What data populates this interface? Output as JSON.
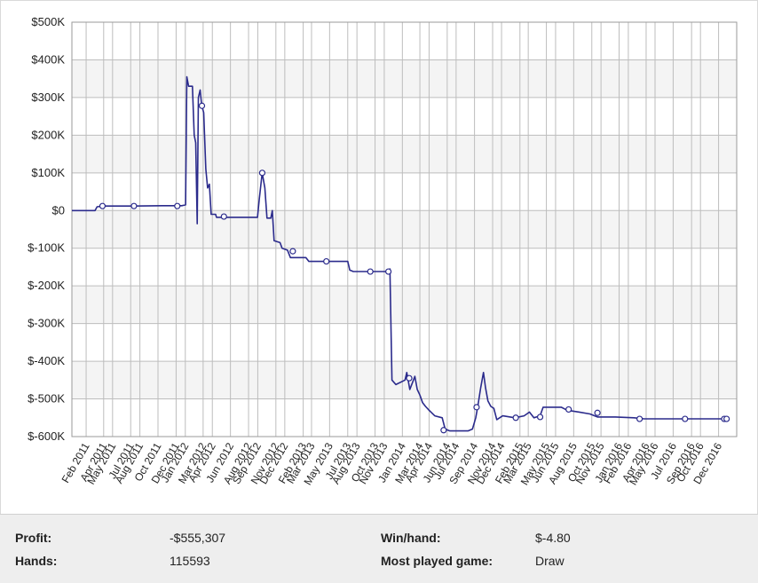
{
  "chart_data": {
    "type": "line",
    "title": "",
    "xlabel": "",
    "ylabel": "",
    "ylim": [
      -600000,
      500000
    ],
    "y_ticks": [
      {
        "value": 500000,
        "label": "$500K"
      },
      {
        "value": 400000,
        "label": "$400K"
      },
      {
        "value": 300000,
        "label": "$300K"
      },
      {
        "value": 200000,
        "label": "$200K"
      },
      {
        "value": 100000,
        "label": "$100K"
      },
      {
        "value": 0,
        "label": "$0"
      },
      {
        "value": -100000,
        "label": "$-100K"
      },
      {
        "value": -200000,
        "label": "$-200K"
      },
      {
        "value": -300000,
        "label": "$-300K"
      },
      {
        "value": -400000,
        "label": "$-400K"
      },
      {
        "value": -500000,
        "label": "$-500K"
      },
      {
        "value": -600000,
        "label": "$-600K"
      }
    ],
    "xlim": [
      "2010-12-15",
      "2017-01-31"
    ],
    "x_ticks": [
      {
        "date": "2011-02-01",
        "label": "Feb 2011"
      },
      {
        "date": "2011-04-01",
        "label": "Apr 2011"
      },
      {
        "date": "2011-05-01",
        "label": "May 2011"
      },
      {
        "date": "2011-07-01",
        "label": "Jul 2011"
      },
      {
        "date": "2011-08-01",
        "label": "Aug 2011"
      },
      {
        "date": "2011-10-01",
        "label": "Oct 2011"
      },
      {
        "date": "2011-12-01",
        "label": "Dec 2011"
      },
      {
        "date": "2012-01-01",
        "label": "Jan 2012"
      },
      {
        "date": "2012-03-01",
        "label": "Mar 2012"
      },
      {
        "date": "2012-04-01",
        "label": "Apr 2012"
      },
      {
        "date": "2012-06-01",
        "label": "Jun 2012"
      },
      {
        "date": "2012-08-01",
        "label": "Aug 2012"
      },
      {
        "date": "2012-09-01",
        "label": "Sep 2012"
      },
      {
        "date": "2012-11-01",
        "label": "Nov 2012"
      },
      {
        "date": "2012-12-01",
        "label": "Dec 2012"
      },
      {
        "date": "2013-02-01",
        "label": "Feb 2013"
      },
      {
        "date": "2013-03-01",
        "label": "Mar 2013"
      },
      {
        "date": "2013-05-01",
        "label": "May 2013"
      },
      {
        "date": "2013-07-01",
        "label": "Jul 2013"
      },
      {
        "date": "2013-08-01",
        "label": "Aug 2013"
      },
      {
        "date": "2013-10-01",
        "label": "Oct 2013"
      },
      {
        "date": "2013-11-01",
        "label": "Nov 2013"
      },
      {
        "date": "2014-01-01",
        "label": "Jan 2014"
      },
      {
        "date": "2014-03-01",
        "label": "Mar 2014"
      },
      {
        "date": "2014-04-01",
        "label": "Apr 2014"
      },
      {
        "date": "2014-06-01",
        "label": "Jun 2014"
      },
      {
        "date": "2014-07-01",
        "label": "Jul 2014"
      },
      {
        "date": "2014-09-01",
        "label": "Sep 2014"
      },
      {
        "date": "2014-11-01",
        "label": "Nov 2014"
      },
      {
        "date": "2014-12-01",
        "label": "Dec 2014"
      },
      {
        "date": "2015-02-01",
        "label": "Feb 2015"
      },
      {
        "date": "2015-03-01",
        "label": "Mar 2015"
      },
      {
        "date": "2015-05-01",
        "label": "May 2015"
      },
      {
        "date": "2015-06-01",
        "label": "Jun 2015"
      },
      {
        "date": "2015-08-01",
        "label": "Aug 2015"
      },
      {
        "date": "2015-10-01",
        "label": "Oct 2015"
      },
      {
        "date": "2015-11-01",
        "label": "Nov 2015"
      },
      {
        "date": "2016-01-01",
        "label": "Jan 2016"
      },
      {
        "date": "2016-02-01",
        "label": "Feb 2016"
      },
      {
        "date": "2016-04-01",
        "label": "Apr 2016"
      },
      {
        "date": "2016-05-01",
        "label": "May 2016"
      },
      {
        "date": "2016-07-01",
        "label": "Jul 2016"
      },
      {
        "date": "2016-09-01",
        "label": "Sep 2016"
      },
      {
        "date": "2016-10-01",
        "label": "Oct 2016"
      },
      {
        "date": "2016-12-01",
        "label": "Dec 2016"
      }
    ],
    "grid": true,
    "series": [
      {
        "color": "#2b2b8c",
        "points": [
          [
            "2010-12-15",
            0
          ],
          [
            "2011-03-03",
            0
          ],
          [
            "2011-03-10",
            10000
          ],
          [
            "2011-04-02",
            12000
          ],
          [
            "2011-07-10",
            12000
          ],
          [
            "2011-10-15",
            13000
          ],
          [
            "2011-12-20",
            13000
          ],
          [
            "2012-01-02",
            15000
          ],
          [
            "2012-01-06",
            355000
          ],
          [
            "2012-01-12",
            330000
          ],
          [
            "2012-01-25",
            330000
          ],
          [
            "2012-01-31",
            200000
          ],
          [
            "2012-02-05",
            180000
          ],
          [
            "2012-02-10",
            -35000
          ],
          [
            "2012-02-14",
            300000
          ],
          [
            "2012-02-20",
            320000
          ],
          [
            "2012-02-25",
            280000
          ],
          [
            "2012-03-03",
            260000
          ],
          [
            "2012-03-10",
            110000
          ],
          [
            "2012-03-16",
            60000
          ],
          [
            "2012-03-22",
            70000
          ],
          [
            "2012-03-28",
            -10000
          ],
          [
            "2012-04-12",
            -10000
          ],
          [
            "2012-04-15",
            -18000
          ],
          [
            "2012-06-15",
            -18000
          ],
          [
            "2012-08-31",
            -18000
          ],
          [
            "2012-09-06",
            30000
          ],
          [
            "2012-09-16",
            100000
          ],
          [
            "2012-09-25",
            60000
          ],
          [
            "2012-10-02",
            -20000
          ],
          [
            "2012-10-15",
            -20000
          ],
          [
            "2012-10-20",
            0
          ],
          [
            "2012-10-26",
            -80000
          ],
          [
            "2012-11-15",
            -85000
          ],
          [
            "2012-11-22",
            -100000
          ],
          [
            "2012-12-10",
            -105000
          ],
          [
            "2012-12-20",
            -125000
          ],
          [
            "2013-02-10",
            -125000
          ],
          [
            "2013-02-20",
            -135000
          ],
          [
            "2013-06-01",
            -135000
          ],
          [
            "2013-07-01",
            -135000
          ],
          [
            "2013-07-08",
            -158000
          ],
          [
            "2013-07-20",
            -162000
          ],
          [
            "2013-11-15",
            -162000
          ],
          [
            "2013-11-20",
            -155000
          ],
          [
            "2013-11-27",
            -450000
          ],
          [
            "2013-12-10",
            -462000
          ],
          [
            "2014-01-10",
            -450000
          ],
          [
            "2014-01-16",
            -430000
          ],
          [
            "2014-01-26",
            -475000
          ],
          [
            "2014-02-05",
            -455000
          ],
          [
            "2014-02-12",
            -440000
          ],
          [
            "2014-02-20",
            -475000
          ],
          [
            "2014-03-01",
            -490000
          ],
          [
            "2014-03-10",
            -510000
          ],
          [
            "2014-03-20",
            -520000
          ],
          [
            "2014-04-01",
            -530000
          ],
          [
            "2014-04-20",
            -545000
          ],
          [
            "2014-05-15",
            -550000
          ],
          [
            "2014-05-25",
            -580000
          ],
          [
            "2014-06-10",
            -585000
          ],
          [
            "2014-07-15",
            -585000
          ],
          [
            "2014-08-10",
            -585000
          ],
          [
            "2014-08-25",
            -580000
          ],
          [
            "2014-09-05",
            -550000
          ],
          [
            "2014-09-12",
            -520000
          ],
          [
            "2014-09-22",
            -470000
          ],
          [
            "2014-10-01",
            -430000
          ],
          [
            "2014-10-08",
            -470000
          ],
          [
            "2014-10-16",
            -505000
          ],
          [
            "2014-10-26",
            -520000
          ],
          [
            "2014-11-05",
            -525000
          ],
          [
            "2014-11-15",
            -555000
          ],
          [
            "2014-12-05",
            -545000
          ],
          [
            "2015-01-15",
            -550000
          ],
          [
            "2015-02-15",
            -545000
          ],
          [
            "2015-03-05",
            -535000
          ],
          [
            "2015-03-20",
            -550000
          ],
          [
            "2015-04-10",
            -545000
          ],
          [
            "2015-04-20",
            -522000
          ],
          [
            "2015-05-20",
            -522000
          ],
          [
            "2015-06-20",
            -522000
          ],
          [
            "2015-07-10",
            -530000
          ],
          [
            "2015-08-20",
            -535000
          ],
          [
            "2015-09-25",
            -540000
          ],
          [
            "2015-10-20",
            -548000
          ],
          [
            "2015-12-20",
            -548000
          ],
          [
            "2016-02-20",
            -550000
          ],
          [
            "2016-03-25",
            -553000
          ],
          [
            "2016-06-15",
            -553000
          ],
          [
            "2016-09-15",
            -553000
          ],
          [
            "2016-12-31",
            -553000
          ]
        ],
        "markers": [
          [
            "2011-03-28",
            12000
          ],
          [
            "2011-07-12",
            12000
          ],
          [
            "2011-12-05",
            12000
          ],
          [
            "2012-02-26",
            278000
          ],
          [
            "2012-05-10",
            -16000
          ],
          [
            "2012-09-16",
            100000
          ],
          [
            "2012-12-28",
            -108000
          ],
          [
            "2013-04-20",
            -135000
          ],
          [
            "2013-09-15",
            -162000
          ],
          [
            "2013-11-15",
            -162000
          ],
          [
            "2014-01-24",
            -445000
          ],
          [
            "2014-05-20",
            -583000
          ],
          [
            "2014-09-08",
            -522000
          ],
          [
            "2015-01-18",
            -550000
          ],
          [
            "2015-04-10",
            -548000
          ],
          [
            "2015-07-15",
            -528000
          ],
          [
            "2015-10-20",
            -537000
          ],
          [
            "2016-03-10",
            -553000
          ],
          [
            "2016-08-10",
            -553000
          ],
          [
            "2016-12-20",
            -553000
          ],
          [
            "2016-12-28",
            -553000
          ]
        ]
      }
    ]
  },
  "stats": {
    "profit_label": "Profit:",
    "profit_value": "-$555,307",
    "hands_label": "Hands:",
    "hands_value": "115593",
    "winhand_label": "Win/hand:",
    "winhand_value": "$-4.80",
    "game_label": "Most played game:",
    "game_value": "Draw"
  },
  "colors": {
    "line": "#2b2b8c",
    "grid": "#bdbdbd",
    "band": "#f4f4f4",
    "panel": "#eeeeee"
  }
}
